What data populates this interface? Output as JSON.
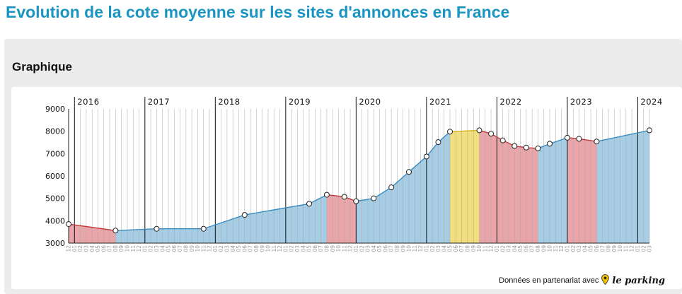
{
  "page": {
    "title": "Evolution de la cote moyenne sur les sites d'annonces en France"
  },
  "panel": {
    "title": "Graphique"
  },
  "footer": {
    "credit": "Données en partenariat avec",
    "brand": "le parking"
  },
  "colors": {
    "blue_fill": "#a6cde4",
    "blue_line": "#3a8cbf",
    "red_fill": "#e9a5a9",
    "red_line": "#c0393e",
    "yellow_fill": "#f2df7e",
    "yellow_line": "#d7b323",
    "title": "#1a95c4"
  },
  "chart_data": {
    "type": "area",
    "ylim": [
      3000,
      9000
    ],
    "yticks": [
      "9000",
      "8000",
      "7000",
      "6000",
      "5000",
      "4000",
      "3000"
    ],
    "years": [
      "2016",
      "2017",
      "2018",
      "2019",
      "2020",
      "2021",
      "2022",
      "2023",
      "2024"
    ],
    "month_labels": [
      "12",
      "01",
      "02",
      "03",
      "04",
      "05",
      "06",
      "07",
      "08",
      "09",
      "10",
      "11",
      "12",
      "01",
      "02",
      "03",
      "04",
      "05",
      "06",
      "07",
      "08",
      "09",
      "10",
      "11",
      "12",
      "01",
      "02",
      "03",
      "04",
      "05",
      "06",
      "07",
      "08",
      "09",
      "10",
      "11",
      "12",
      "01",
      "02",
      "03",
      "04",
      "05",
      "06",
      "07",
      "08",
      "09",
      "10",
      "11",
      "12",
      "01",
      "02",
      "03",
      "04",
      "05",
      "06",
      "07",
      "08",
      "09",
      "10",
      "11",
      "12",
      "01",
      "02",
      "03",
      "04",
      "05",
      "06",
      "07",
      "08",
      "09",
      "10",
      "11",
      "12",
      "01",
      "02",
      "03",
      "04",
      "05",
      "06",
      "07",
      "08",
      "09",
      "10",
      "11",
      "12",
      "01",
      "02",
      "03",
      "04",
      "05",
      "06",
      "07",
      "08",
      "09",
      "10",
      "11",
      "12",
      "01",
      "02",
      "03"
    ],
    "points": [
      {
        "x": "2015-12",
        "y": 3850
      },
      {
        "x": "2016-08",
        "y": 3560
      },
      {
        "x": "2017-03",
        "y": 3640
      },
      {
        "x": "2017-11",
        "y": 3640
      },
      {
        "x": "2018-06",
        "y": 4260
      },
      {
        "x": "2019-05",
        "y": 4760
      },
      {
        "x": "2019-08",
        "y": 5160
      },
      {
        "x": "2019-11",
        "y": 5070
      },
      {
        "x": "2020-01",
        "y": 4870
      },
      {
        "x": "2020-04",
        "y": 5000
      },
      {
        "x": "2020-07",
        "y": 5490
      },
      {
        "x": "2020-10",
        "y": 6180
      },
      {
        "x": "2021-01",
        "y": 6870
      },
      {
        "x": "2021-03",
        "y": 7510
      },
      {
        "x": "2021-05",
        "y": 7980
      },
      {
        "x": "2021-10",
        "y": 8040
      },
      {
        "x": "2021-12",
        "y": 7890
      },
      {
        "x": "2022-02",
        "y": 7590
      },
      {
        "x": "2022-04",
        "y": 7340
      },
      {
        "x": "2022-06",
        "y": 7270
      },
      {
        "x": "2022-08",
        "y": 7230
      },
      {
        "x": "2022-10",
        "y": 7440
      },
      {
        "x": "2023-01",
        "y": 7710
      },
      {
        "x": "2023-03",
        "y": 7660
      },
      {
        "x": "2023-06",
        "y": 7540
      },
      {
        "x": "2024-03",
        "y": 8040
      }
    ],
    "segments": [
      {
        "from": "2015-12",
        "to": "2016-08",
        "trend": "down"
      },
      {
        "from": "2016-08",
        "to": "2019-08",
        "trend": "up"
      },
      {
        "from": "2019-08",
        "to": "2020-01",
        "trend": "down"
      },
      {
        "from": "2020-01",
        "to": "2021-05",
        "trend": "up"
      },
      {
        "from": "2021-05",
        "to": "2021-10",
        "trend": "flat"
      },
      {
        "from": "2021-10",
        "to": "2022-08",
        "trend": "down"
      },
      {
        "from": "2022-08",
        "to": "2023-01",
        "trend": "up"
      },
      {
        "from": "2023-01",
        "to": "2023-06",
        "trend": "down"
      },
      {
        "from": "2023-06",
        "to": "2024-03",
        "trend": "up"
      }
    ],
    "grid": true,
    "legend": "none"
  }
}
